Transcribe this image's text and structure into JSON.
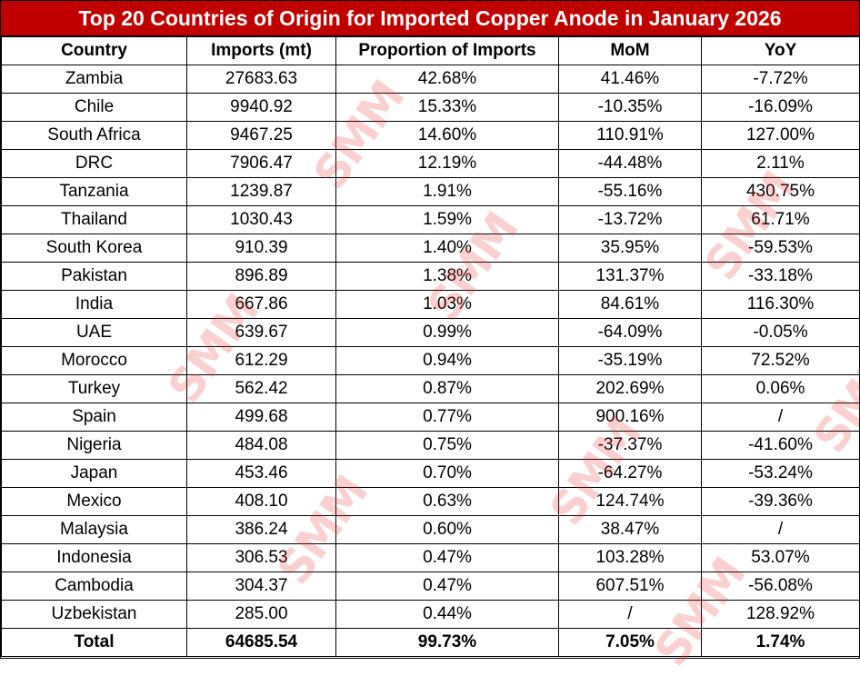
{
  "title": "Top 20 Countries of Origin for Imported Copper Anode in January 2026",
  "columns": [
    "Country",
    "Imports (mt)",
    "Proportion of Imports",
    "MoM",
    "YoY"
  ],
  "chart_data": {
    "type": "table",
    "title": "Top 20 Countries of Origin for Imported Copper Anode in January 2026",
    "columns": [
      "Country",
      "Imports (mt)",
      "Proportion of Imports",
      "MoM",
      "YoY"
    ],
    "rows": [
      [
        "Zambia",
        "27683.63",
        "42.68%",
        "41.46%",
        "-7.72%"
      ],
      [
        "Chile",
        "9940.92",
        "15.33%",
        "-10.35%",
        "-16.09%"
      ],
      [
        "South Africa",
        "9467.25",
        "14.60%",
        "110.91%",
        "127.00%"
      ],
      [
        "DRC",
        "7906.47",
        "12.19%",
        "-44.48%",
        "2.11%"
      ],
      [
        "Tanzania",
        "1239.87",
        "1.91%",
        "-55.16%",
        "430.75%"
      ],
      [
        "Thailand",
        "1030.43",
        "1.59%",
        "-13.72%",
        "61.71%"
      ],
      [
        "South Korea",
        "910.39",
        "1.40%",
        "35.95%",
        "-59.53%"
      ],
      [
        "Pakistan",
        "896.89",
        "1.38%",
        "131.37%",
        "-33.18%"
      ],
      [
        "India",
        "667.86",
        "1.03%",
        "84.61%",
        "116.30%"
      ],
      [
        "UAE",
        "639.67",
        "0.99%",
        "-64.09%",
        "-0.05%"
      ],
      [
        "Morocco",
        "612.29",
        "0.94%",
        "-35.19%",
        "72.52%"
      ],
      [
        "Turkey",
        "562.42",
        "0.87%",
        "202.69%",
        "0.06%"
      ],
      [
        "Spain",
        "499.68",
        "0.77%",
        "900.16%",
        "/"
      ],
      [
        "Nigeria",
        "484.08",
        "0.75%",
        "-37.37%",
        "-41.60%"
      ],
      [
        "Japan",
        "453.46",
        "0.70%",
        "-64.27%",
        "-53.24%"
      ],
      [
        "Mexico",
        "408.10",
        "0.63%",
        "124.74%",
        "-39.36%"
      ],
      [
        "Malaysia",
        "386.24",
        "0.60%",
        "38.47%",
        "/"
      ],
      [
        "Indonesia",
        "306.53",
        "0.47%",
        "103.28%",
        "53.07%"
      ],
      [
        "Cambodia",
        "304.37",
        "0.47%",
        "607.51%",
        "-56.08%"
      ],
      [
        "Uzbekistan",
        "285.00",
        "0.44%",
        "/",
        "128.92%"
      ]
    ],
    "total": [
      "Total",
      "64685.54",
      "99.73%",
      "7.05%",
      "1.74%"
    ]
  },
  "watermark": "SMM",
  "colors": {
    "title_bg": "#c00000",
    "title_text": "#ffffff",
    "watermark": "#e62828"
  }
}
